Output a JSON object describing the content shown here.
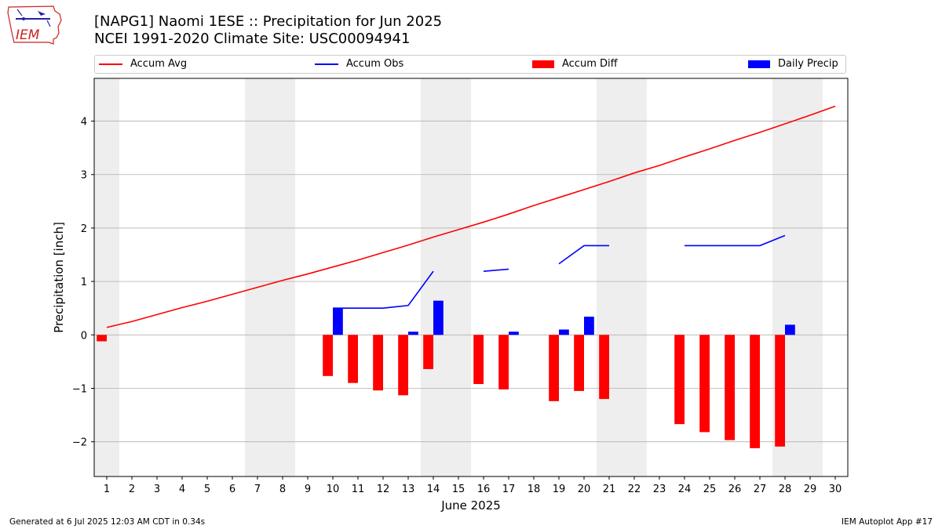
{
  "header": {
    "title_line1": "[NAPG1] Naomi 1ESE :: Precipitation for Jun 2025",
    "title_line2": "NCEI 1991-2020 Climate Site: USC00094941"
  },
  "logo": {
    "text": "IEM",
    "color": "#cc2222"
  },
  "legend": {
    "accum_avg": "Accum Avg",
    "accum_obs": "Accum Obs",
    "accum_diff": "Accum Diff",
    "daily_precip": "Daily Precip",
    "placement": "top, spanning full width"
  },
  "footer": {
    "generated": "Generated at 6 Jul 2025 12:03 AM CDT in 0.34s",
    "app": "IEM Autoplot App #17"
  },
  "colors": {
    "accum_avg": "#ff0000",
    "accum_obs": "#0000ff",
    "accum_diff": "#ff0000",
    "daily_precip": "#0000ff",
    "weekend_shade": "#eeeeee",
    "grid": "#b0b0b0"
  },
  "chart_data": {
    "type": "bar",
    "xlabel": "June 2025",
    "ylabel": "Precipitation [inch]",
    "x": [
      1,
      2,
      3,
      4,
      5,
      6,
      7,
      8,
      9,
      10,
      11,
      12,
      13,
      14,
      15,
      16,
      17,
      18,
      19,
      20,
      21,
      22,
      23,
      24,
      25,
      26,
      27,
      28,
      29,
      30
    ],
    "xlim": [
      0.5,
      30.5
    ],
    "ylim": [
      -2.65,
      4.8
    ],
    "yticks": [
      -2,
      -1,
      0,
      1,
      2,
      3,
      4
    ],
    "grid": "horizontal",
    "weekend_days": [
      1,
      7,
      8,
      14,
      15,
      21,
      22,
      28,
      29
    ],
    "series": [
      {
        "name": "Accum Avg",
        "type": "line",
        "values": [
          0.14,
          0.25,
          0.38,
          0.51,
          0.63,
          0.76,
          0.89,
          1.02,
          1.14,
          1.27,
          1.4,
          1.54,
          1.68,
          1.83,
          1.97,
          2.11,
          2.26,
          2.42,
          2.57,
          2.72,
          2.87,
          3.03,
          3.17,
          3.33,
          3.48,
          3.64,
          3.79,
          3.95,
          4.11,
          4.28
        ]
      },
      {
        "name": "Accum Obs",
        "type": "line",
        "values": [
          null,
          null,
          null,
          null,
          null,
          null,
          null,
          null,
          null,
          0.5,
          0.5,
          0.5,
          0.55,
          1.19,
          null,
          1.19,
          1.23,
          null,
          1.33,
          1.67,
          1.67,
          null,
          null,
          1.67,
          1.67,
          1.67,
          1.67,
          1.86,
          null,
          null
        ]
      },
      {
        "name": "Accum Diff",
        "type": "bar",
        "values": [
          -0.12,
          null,
          null,
          null,
          null,
          null,
          null,
          null,
          null,
          -0.77,
          -0.9,
          -1.04,
          -1.13,
          -0.64,
          null,
          -0.92,
          -1.02,
          null,
          -1.24,
          -1.05,
          -1.2,
          null,
          null,
          -1.67,
          -1.82,
          -1.97,
          -2.12,
          -2.09,
          null,
          null
        ]
      },
      {
        "name": "Daily Precip",
        "type": "bar",
        "values": [
          null,
          null,
          null,
          null,
          null,
          null,
          null,
          null,
          null,
          0.5,
          null,
          null,
          0.06,
          0.64,
          null,
          null,
          0.06,
          null,
          0.1,
          0.34,
          null,
          null,
          null,
          null,
          null,
          null,
          null,
          0.19,
          null,
          null
        ]
      }
    ]
  }
}
